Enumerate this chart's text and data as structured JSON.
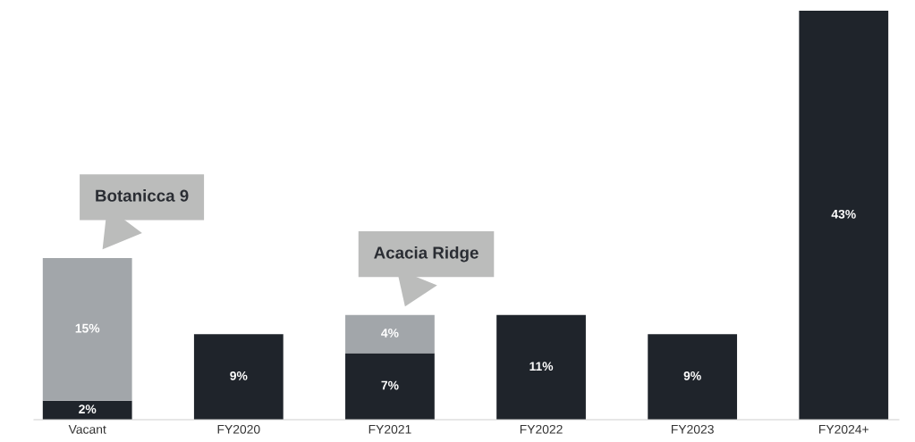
{
  "chart_data": {
    "type": "bar",
    "stacked": true,
    "legend": false,
    "grid": false,
    "categories": [
      "Vacant",
      "FY2020",
      "FY2021",
      "FY2022",
      "FY2023",
      "FY2024+"
    ],
    "series": [
      {
        "color": "#1f242b",
        "values": [
          2,
          9,
          7,
          11,
          9,
          43
        ],
        "value_labels": [
          "2%",
          "9%",
          "7%",
          "11%",
          "9%",
          "43%"
        ]
      },
      {
        "color": "#a2a6aa",
        "values": [
          15,
          null,
          4,
          null,
          null,
          null
        ],
        "value_labels": [
          "15%",
          null,
          "4%",
          null,
          null,
          null
        ]
      }
    ],
    "annotations": [
      "Botanicca 9",
      "Acacia Ridge"
    ]
  }
}
